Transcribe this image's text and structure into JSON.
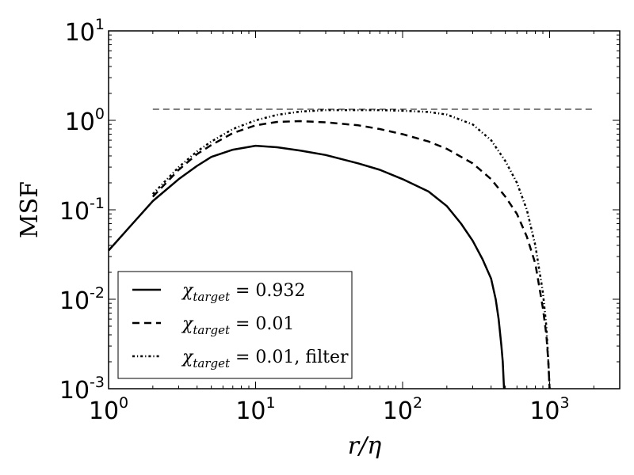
{
  "chart_data": {
    "type": "line",
    "xlabel": "r/η",
    "ylabel": "MSF",
    "xscale": "log",
    "yscale": "log",
    "xlim": [
      1,
      3000
    ],
    "ylim": [
      0.001,
      10
    ],
    "x_ticks": [
      {
        "base": "10",
        "exp": "0",
        "value": 1
      },
      {
        "base": "10",
        "exp": "1",
        "value": 10
      },
      {
        "base": "10",
        "exp": "2",
        "value": 100
      },
      {
        "base": "10",
        "exp": "3",
        "value": 1000
      }
    ],
    "y_ticks": [
      {
        "base": "10",
        "exp": "-3",
        "value": 0.001
      },
      {
        "base": "10",
        "exp": "-2",
        "value": 0.01
      },
      {
        "base": "10",
        "exp": "-1",
        "value": 0.1
      },
      {
        "base": "10",
        "exp": "0",
        "value": 1
      },
      {
        "base": "10",
        "exp": "1",
        "value": 10
      }
    ],
    "grid": false,
    "legend_position": "lower-left",
    "reference_line": {
      "y": 1.33,
      "x": [
        2,
        2000
      ],
      "style": "thin-dashed"
    },
    "series": [
      {
        "name": "χ_target = 0.932",
        "legend": {
          "symbol": "χ",
          "subscript": "target",
          "rest": " = 0.932"
        },
        "style": "solid",
        "x": [
          1,
          1.4,
          2,
          3,
          4,
          5,
          7,
          10,
          14,
          20,
          30,
          50,
          70,
          100,
          150,
          200,
          250,
          300,
          350,
          400,
          430,
          450,
          470,
          480,
          490
        ],
        "y": [
          0.035,
          0.065,
          0.125,
          0.22,
          0.31,
          0.39,
          0.47,
          0.52,
          0.5,
          0.46,
          0.41,
          0.33,
          0.28,
          0.22,
          0.16,
          0.11,
          0.07,
          0.045,
          0.028,
          0.017,
          0.01,
          0.006,
          0.003,
          0.002,
          0.001
        ]
      },
      {
        "name": "χ_target = 0.01",
        "legend": {
          "symbol": "χ",
          "subscript": "target",
          "rest": " = 0.01"
        },
        "style": "dashed",
        "x": [
          2,
          3,
          4,
          5,
          7,
          10,
          14,
          20,
          30,
          50,
          70,
          100,
          150,
          200,
          300,
          400,
          500,
          600,
          700,
          800,
          900,
          950,
          980,
          1000
        ],
        "y": [
          0.14,
          0.28,
          0.42,
          0.53,
          0.72,
          0.88,
          0.96,
          0.98,
          0.95,
          0.88,
          0.8,
          0.7,
          0.58,
          0.48,
          0.33,
          0.22,
          0.14,
          0.09,
          0.05,
          0.025,
          0.008,
          0.004,
          0.002,
          0.001
        ]
      },
      {
        "name": "χ_target = 0.01, filter",
        "legend": {
          "symbol": "χ",
          "subscript": "target",
          "rest": " = 0.01, filter"
        },
        "style": "dashdot",
        "x": [
          2,
          3,
          4,
          5,
          7,
          10,
          14,
          20,
          30,
          50,
          70,
          100,
          150,
          200,
          300,
          400,
          500,
          600,
          700,
          800,
          900,
          950,
          980,
          1000
        ],
        "y": [
          0.15,
          0.3,
          0.45,
          0.58,
          0.8,
          1.0,
          1.15,
          1.25,
          1.3,
          1.3,
          1.3,
          1.28,
          1.24,
          1.16,
          0.9,
          0.6,
          0.35,
          0.2,
          0.1,
          0.04,
          0.012,
          0.005,
          0.002,
          0.001
        ]
      }
    ]
  }
}
